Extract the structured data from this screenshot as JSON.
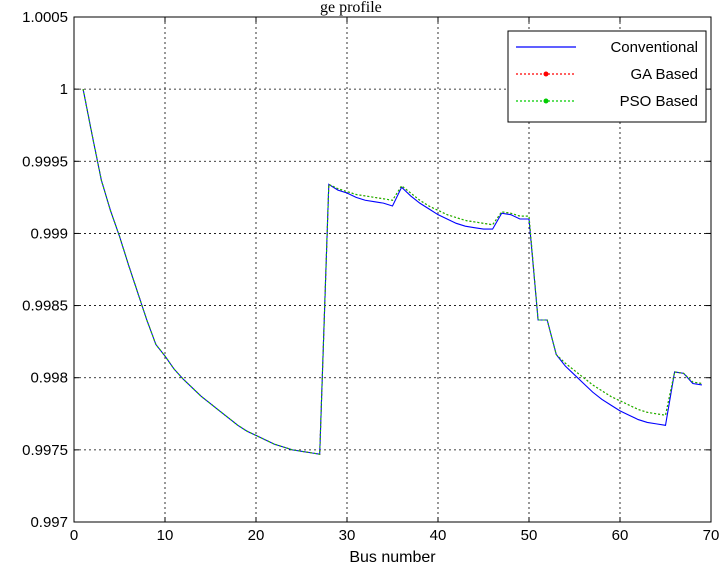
{
  "chart_data": {
    "type": "line",
    "title": "",
    "xlabel": "Bus number",
    "ylabel": "",
    "xlim": [
      0,
      70
    ],
    "ylim": [
      0.997,
      1.0005
    ],
    "x_ticks": [
      "0",
      "10",
      "20",
      "30",
      "40",
      "50",
      "60",
      "70"
    ],
    "y_ticks": [
      "0.997",
      "0.9975",
      "0.998",
      "0.9985",
      "0.999",
      "0.9995",
      "1",
      "1.0005"
    ],
    "grid": true,
    "legend_position": "top-right",
    "partial_top_text": "ge profile",
    "x": [
      1,
      2,
      3,
      4,
      5,
      6,
      7,
      8,
      9,
      10,
      11,
      12,
      13,
      14,
      15,
      16,
      17,
      18,
      19,
      20,
      21,
      22,
      23,
      24,
      25,
      26,
      27,
      28,
      29,
      30,
      31,
      32,
      33,
      34,
      35,
      36,
      37,
      38,
      39,
      40,
      41,
      42,
      43,
      44,
      45,
      46,
      47,
      48,
      49,
      50,
      51,
      52,
      53,
      54,
      55,
      56,
      57,
      58,
      59,
      60,
      61,
      62,
      63,
      64,
      65,
      66,
      67,
      68,
      69
    ],
    "series": [
      {
        "name": "Conventional",
        "color": "#0000ff",
        "style": "solid",
        "values": [
          1.0,
          0.99968,
          0.99937,
          0.99916,
          0.99898,
          0.99878,
          0.99859,
          0.9984,
          0.99823,
          0.99815,
          0.99806,
          0.99799,
          0.99793,
          0.99787,
          0.99782,
          0.99777,
          0.99772,
          0.99767,
          0.99763,
          0.9976,
          0.99757,
          0.99754,
          0.99752,
          0.9975,
          0.99749,
          0.99748,
          0.99747,
          0.99934,
          0.9993,
          0.99928,
          0.99925,
          0.99923,
          0.99922,
          0.99921,
          0.99919,
          0.99932,
          0.99926,
          0.99921,
          0.99917,
          0.99913,
          0.9991,
          0.99907,
          0.99905,
          0.99904,
          0.99903,
          0.99903,
          0.99914,
          0.99913,
          0.9991,
          0.9991,
          0.9984,
          0.9984,
          0.99816,
          0.99808,
          0.99802,
          0.99796,
          0.9979,
          0.99785,
          0.99781,
          0.99777,
          0.99774,
          0.99771,
          0.99769,
          0.99768,
          0.99767,
          0.99804,
          0.99803,
          0.99796,
          0.99795
        ]
      },
      {
        "name": "GA Based",
        "color": "#ff0000",
        "style": "dotted",
        "values": [
          1.0,
          0.99968,
          0.99937,
          0.99916,
          0.99898,
          0.99878,
          0.99859,
          0.9984,
          0.99823,
          0.99815,
          0.99806,
          0.99799,
          0.99793,
          0.99787,
          0.99782,
          0.99777,
          0.99772,
          0.99767,
          0.99763,
          0.9976,
          0.99757,
          0.99754,
          0.99752,
          0.9975,
          0.99749,
          0.99748,
          0.99747,
          0.99934,
          0.99931,
          0.99929,
          0.99927,
          0.99926,
          0.99925,
          0.99924,
          0.99923,
          0.99933,
          0.99928,
          0.99923,
          0.99919,
          0.99916,
          0.99913,
          0.99911,
          0.99909,
          0.99908,
          0.99907,
          0.99906,
          0.99915,
          0.99914,
          0.99912,
          0.99912,
          0.9984,
          0.9984,
          0.99816,
          0.9981,
          0.99805,
          0.998,
          0.99795,
          0.99791,
          0.99787,
          0.99784,
          0.99781,
          0.99778,
          0.99776,
          0.99775,
          0.99774,
          0.99804,
          0.99803,
          0.99797,
          0.99796
        ]
      },
      {
        "name": "PSO Based",
        "color": "#00cc00",
        "style": "dotted",
        "values": [
          1.0,
          0.99968,
          0.99937,
          0.99916,
          0.99898,
          0.99878,
          0.99859,
          0.9984,
          0.99823,
          0.99815,
          0.99806,
          0.99799,
          0.99793,
          0.99787,
          0.99782,
          0.99777,
          0.99772,
          0.99767,
          0.99763,
          0.9976,
          0.99757,
          0.99754,
          0.99752,
          0.9975,
          0.99749,
          0.99748,
          0.99747,
          0.99934,
          0.99931,
          0.99929,
          0.99927,
          0.99926,
          0.99925,
          0.99924,
          0.99923,
          0.99933,
          0.99928,
          0.99923,
          0.99919,
          0.99916,
          0.99913,
          0.99911,
          0.99909,
          0.99908,
          0.99907,
          0.99906,
          0.99915,
          0.99914,
          0.99912,
          0.99912,
          0.9984,
          0.9984,
          0.99816,
          0.9981,
          0.99805,
          0.998,
          0.99795,
          0.99791,
          0.99787,
          0.99784,
          0.99781,
          0.99778,
          0.99776,
          0.99775,
          0.99774,
          0.99804,
          0.99803,
          0.99797,
          0.99796
        ]
      }
    ]
  }
}
